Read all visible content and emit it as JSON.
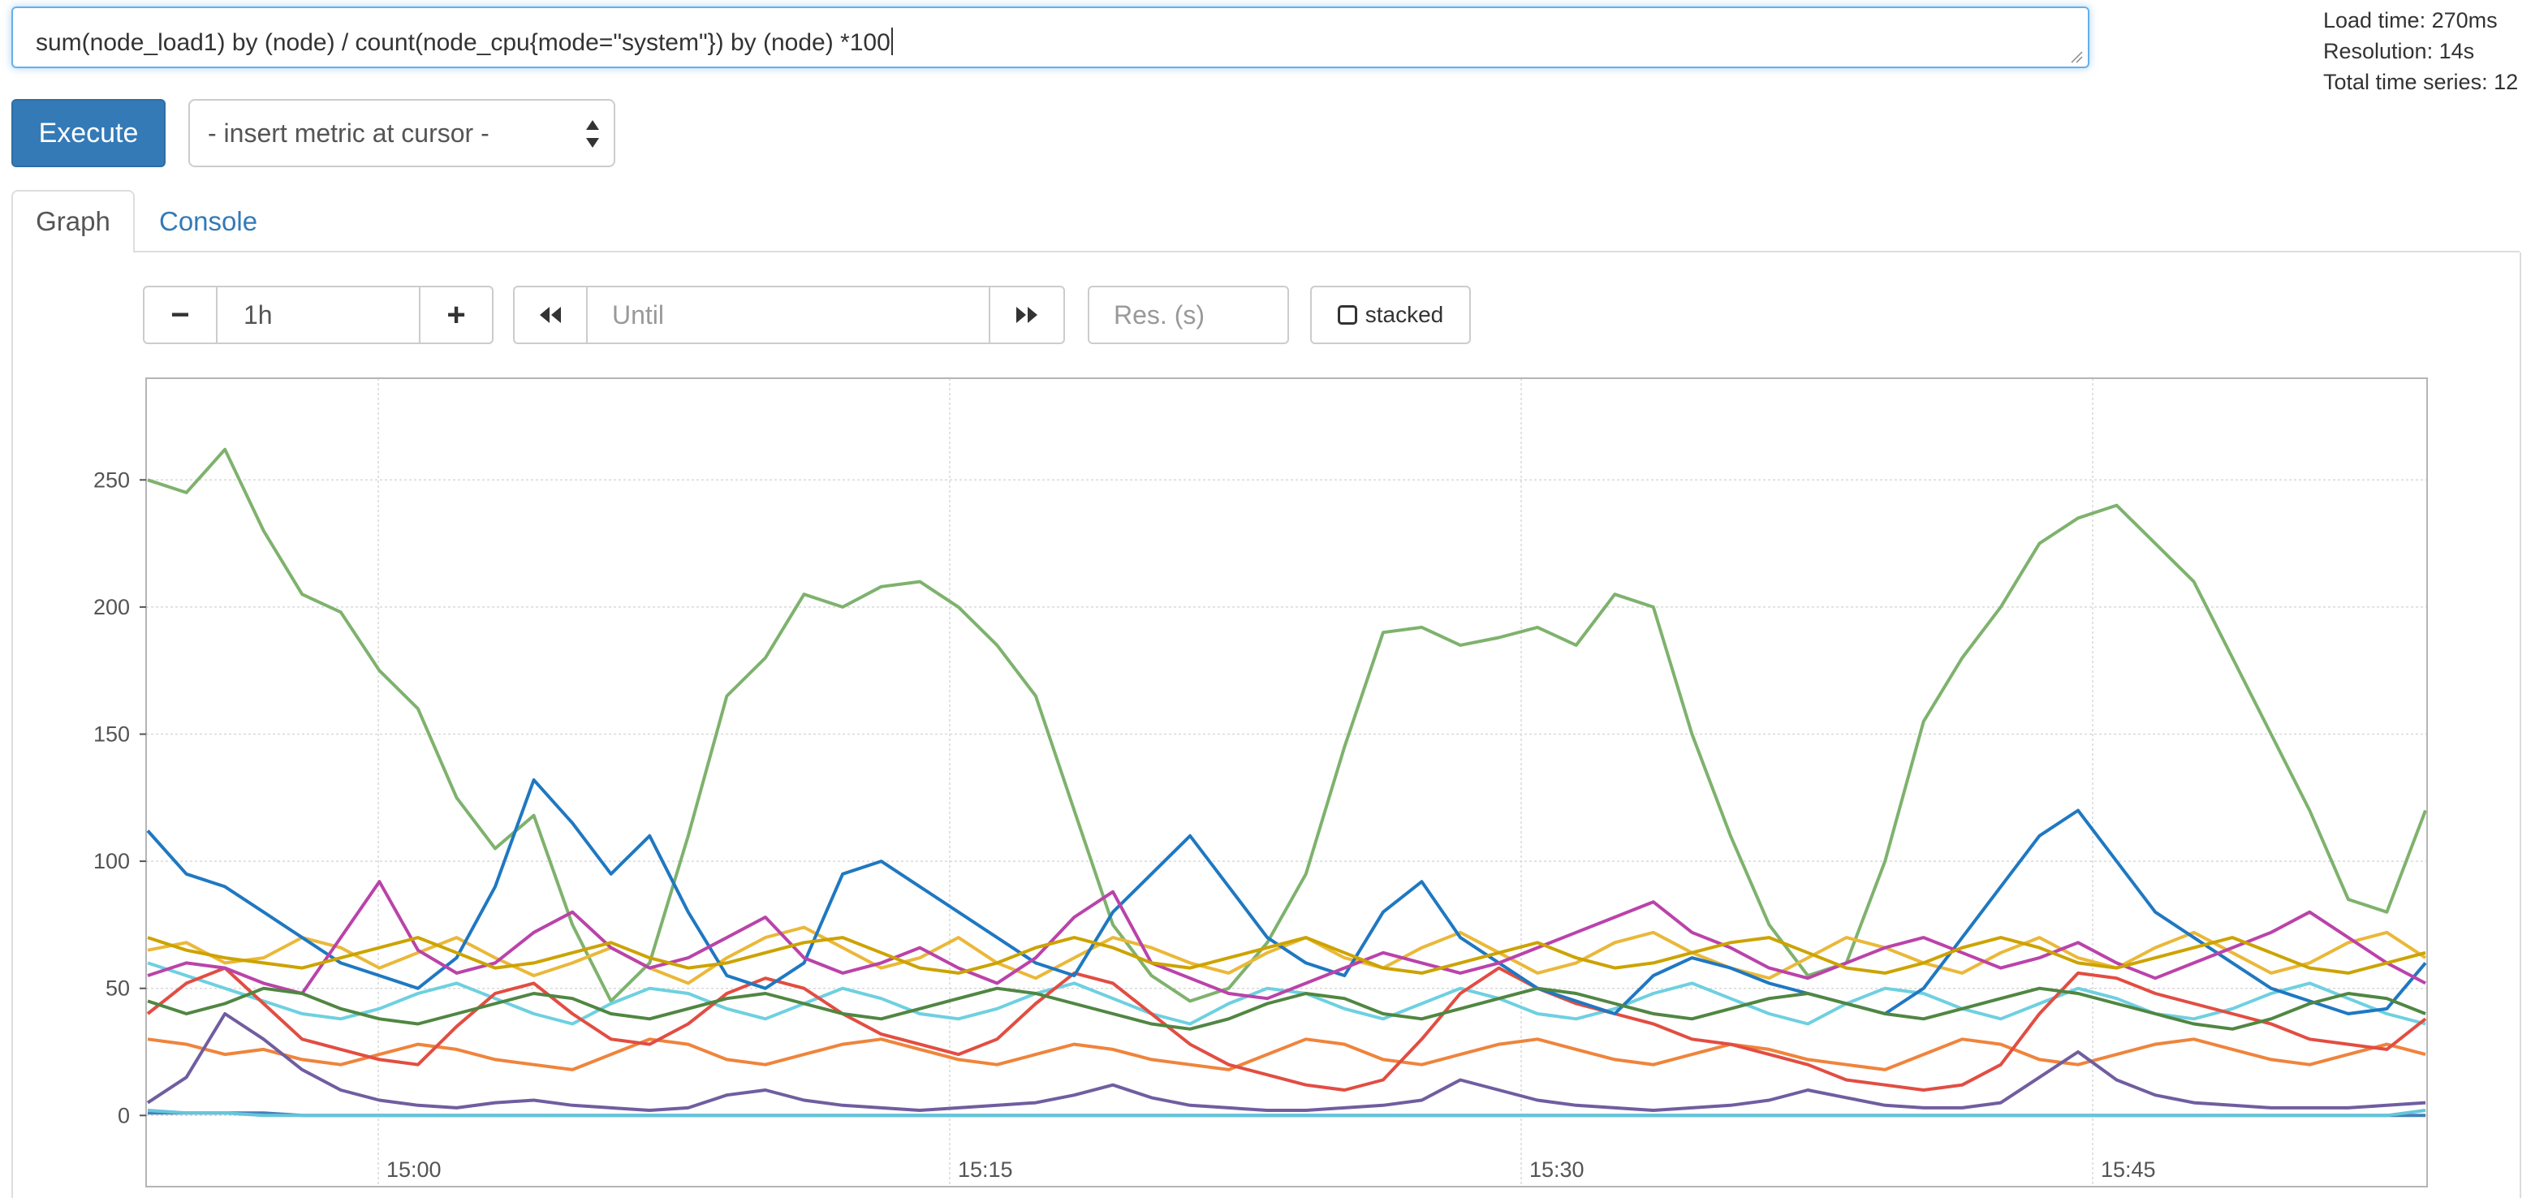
{
  "query": {
    "value": "sum(node_load1) by (node) / count(node_cpu{mode=\"system\"}) by (node) *100"
  },
  "stats": {
    "load_time": "Load time: 270ms",
    "resolution": "Resolution: 14s",
    "total_series": "Total time series: 12"
  },
  "toolbar": {
    "execute_label": "Execute",
    "metric_select_label": "- insert metric at cursor -"
  },
  "tabs": [
    {
      "label": "Graph",
      "active": true
    },
    {
      "label": "Console",
      "active": false
    }
  ],
  "graph_controls": {
    "range_minus": "−",
    "range_value": "1h",
    "range_plus": "+",
    "back_icon": "rewind-icon",
    "until_placeholder": "Until",
    "forward_icon": "fast-forward-icon",
    "resolution_placeholder": "Res. (s)",
    "stacked_label": "stacked"
  },
  "chart_data": {
    "type": "line",
    "x_tick_labels": [
      "15:00",
      "15:15",
      "15:30",
      "15:45"
    ],
    "y_tick_labels": [
      "0",
      "50",
      "100",
      "150",
      "200",
      "250"
    ],
    "ylim": [
      -28,
      290
    ],
    "grid": true,
    "legend": "none",
    "x_start_label": "14:54",
    "x_end_label": "15:54",
    "points_per_series": 60,
    "series": [
      {
        "color": "#7eb26d",
        "values": [
          250,
          245,
          262,
          230,
          205,
          198,
          175,
          160,
          125,
          105,
          118,
          75,
          45,
          60,
          110,
          165,
          180,
          205,
          200,
          208,
          210,
          200,
          185,
          165,
          120,
          75,
          55,
          45,
          50,
          68,
          95,
          145,
          190,
          192,
          185,
          188,
          192,
          185,
          205,
          200,
          150,
          110,
          75,
          55,
          60,
          100,
          155,
          180,
          200,
          225,
          235,
          240,
          225,
          210,
          180,
          150,
          120,
          85,
          80,
          120
        ]
      },
      {
        "color": "#eab839",
        "values": [
          65,
          68,
          60,
          62,
          70,
          66,
          58,
          64,
          70,
          62,
          55,
          60,
          66,
          58,
          52,
          62,
          70,
          74,
          66,
          58,
          62,
          70,
          60,
          54,
          62,
          70,
          66,
          60,
          56,
          64,
          70,
          62,
          58,
          66,
          72,
          64,
          56,
          60,
          68,
          72,
          64,
          58,
          54,
          62,
          70,
          66,
          60,
          56,
          64,
          70,
          62,
          58,
          66,
          72,
          64,
          56,
          60,
          68,
          72,
          62
        ]
      },
      {
        "color": "#6ed0e0",
        "values": [
          60,
          55,
          50,
          45,
          40,
          38,
          42,
          48,
          52,
          46,
          40,
          36,
          44,
          50,
          48,
          42,
          38,
          44,
          50,
          46,
          40,
          38,
          42,
          48,
          52,
          46,
          40,
          36,
          44,
          50,
          48,
          42,
          38,
          44,
          50,
          46,
          40,
          38,
          42,
          48,
          52,
          46,
          40,
          36,
          44,
          50,
          48,
          42,
          38,
          44,
          50,
          46,
          40,
          38,
          42,
          48,
          52,
          46,
          40,
          36
        ]
      },
      {
        "color": "#ef843c",
        "values": [
          30,
          28,
          24,
          26,
          22,
          20,
          24,
          28,
          26,
          22,
          20,
          18,
          24,
          30,
          28,
          22,
          20,
          24,
          28,
          30,
          26,
          22,
          20,
          24,
          28,
          26,
          22,
          20,
          18,
          24,
          30,
          28,
          22,
          20,
          24,
          28,
          30,
          26,
          22,
          20,
          24,
          28,
          26,
          22,
          20,
          18,
          24,
          30,
          28,
          22,
          20,
          24,
          28,
          30,
          26,
          22,
          20,
          24,
          28,
          24
        ]
      },
      {
        "color": "#e24d42",
        "values": [
          40,
          52,
          58,
          44,
          30,
          26,
          22,
          20,
          35,
          48,
          52,
          40,
          30,
          28,
          36,
          48,
          54,
          50,
          40,
          32,
          28,
          24,
          30,
          44,
          56,
          52,
          40,
          28,
          20,
          16,
          12,
          10,
          14,
          30,
          48,
          58,
          50,
          44,
          40,
          36,
          30,
          28,
          24,
          20,
          14,
          12,
          10,
          12,
          20,
          40,
          56,
          54,
          48,
          44,
          40,
          36,
          30,
          28,
          26,
          38
        ]
      },
      {
        "color": "#1f78c1",
        "values": [
          112,
          95,
          90,
          80,
          70,
          60,
          55,
          50,
          62,
          90,
          132,
          115,
          95,
          110,
          80,
          55,
          50,
          60,
          95,
          100,
          90,
          80,
          70,
          60,
          55,
          80,
          95,
          110,
          90,
          70,
          60,
          55,
          80,
          92,
          70,
          60,
          50,
          45,
          40,
          55,
          62,
          58,
          52,
          48,
          44,
          40,
          50,
          70,
          90,
          110,
          120,
          100,
          80,
          70,
          60,
          50,
          45,
          40,
          42,
          60
        ]
      },
      {
        "color": "#ba43a9",
        "values": [
          55,
          60,
          58,
          52,
          48,
          70,
          92,
          65,
          56,
          60,
          72,
          80,
          66,
          58,
          62,
          70,
          78,
          62,
          56,
          60,
          66,
          58,
          52,
          62,
          78,
          88,
          60,
          54,
          48,
          46,
          52,
          58,
          64,
          60,
          56,
          60,
          66,
          72,
          78,
          84,
          72,
          66,
          58,
          54,
          60,
          66,
          70,
          64,
          58,
          62,
          68,
          60,
          54,
          60,
          66,
          72,
          80,
          70,
          60,
          52
        ]
      },
      {
        "color": "#705da0",
        "values": [
          5,
          15,
          40,
          30,
          18,
          10,
          6,
          4,
          3,
          5,
          6,
          4,
          3,
          2,
          3,
          8,
          10,
          6,
          4,
          3,
          2,
          3,
          4,
          5,
          8,
          12,
          7,
          4,
          3,
          2,
          2,
          3,
          4,
          6,
          14,
          10,
          6,
          4,
          3,
          2,
          3,
          4,
          6,
          10,
          7,
          4,
          3,
          3,
          5,
          15,
          25,
          14,
          8,
          5,
          4,
          3,
          3,
          3,
          4,
          5
        ]
      },
      {
        "color": "#508642",
        "values": [
          45,
          40,
          44,
          50,
          48,
          42,
          38,
          36,
          40,
          44,
          48,
          46,
          40,
          38,
          42,
          46,
          48,
          44,
          40,
          38,
          42,
          46,
          50,
          48,
          44,
          40,
          36,
          34,
          38,
          44,
          48,
          46,
          40,
          38,
          42,
          46,
          50,
          48,
          44,
          40,
          38,
          42,
          46,
          48,
          44,
          40,
          38,
          42,
          46,
          50,
          48,
          44,
          40,
          36,
          34,
          38,
          44,
          48,
          46,
          40
        ]
      },
      {
        "color": "#cca300",
        "values": [
          70,
          65,
          62,
          60,
          58,
          62,
          66,
          70,
          64,
          58,
          60,
          64,
          68,
          62,
          58,
          60,
          64,
          68,
          70,
          64,
          58,
          56,
          60,
          66,
          70,
          66,
          60,
          58,
          62,
          66,
          70,
          64,
          58,
          56,
          60,
          64,
          68,
          62,
          58,
          60,
          64,
          68,
          70,
          64,
          58,
          56,
          60,
          66,
          70,
          66,
          60,
          58,
          62,
          66,
          70,
          64,
          58,
          56,
          60,
          64
        ]
      },
      {
        "color": "#447ebc",
        "values": [
          1,
          1,
          1,
          1,
          0,
          0,
          0,
          0,
          0,
          0,
          0,
          0,
          0,
          0,
          0,
          0,
          0,
          0,
          0,
          0,
          0,
          0,
          0,
          0,
          0,
          0,
          0,
          0,
          0,
          0,
          0,
          0,
          0,
          0,
          0,
          0,
          0,
          0,
          0,
          0,
          0,
          0,
          0,
          0,
          0,
          0,
          0,
          0,
          0,
          0,
          0,
          0,
          0,
          0,
          0,
          0,
          0,
          0,
          0,
          0
        ]
      },
      {
        "color": "#65c5db",
        "values": [
          2,
          1,
          1,
          0,
          0,
          0,
          0,
          0,
          0,
          0,
          0,
          0,
          0,
          0,
          0,
          0,
          0,
          0,
          0,
          0,
          0,
          0,
          0,
          0,
          0,
          0,
          0,
          0,
          0,
          0,
          0,
          0,
          0,
          0,
          0,
          0,
          0,
          0,
          0,
          0,
          0,
          0,
          0,
          0,
          0,
          0,
          0,
          0,
          0,
          0,
          0,
          0,
          0,
          0,
          0,
          0,
          0,
          0,
          0,
          2
        ]
      }
    ]
  }
}
